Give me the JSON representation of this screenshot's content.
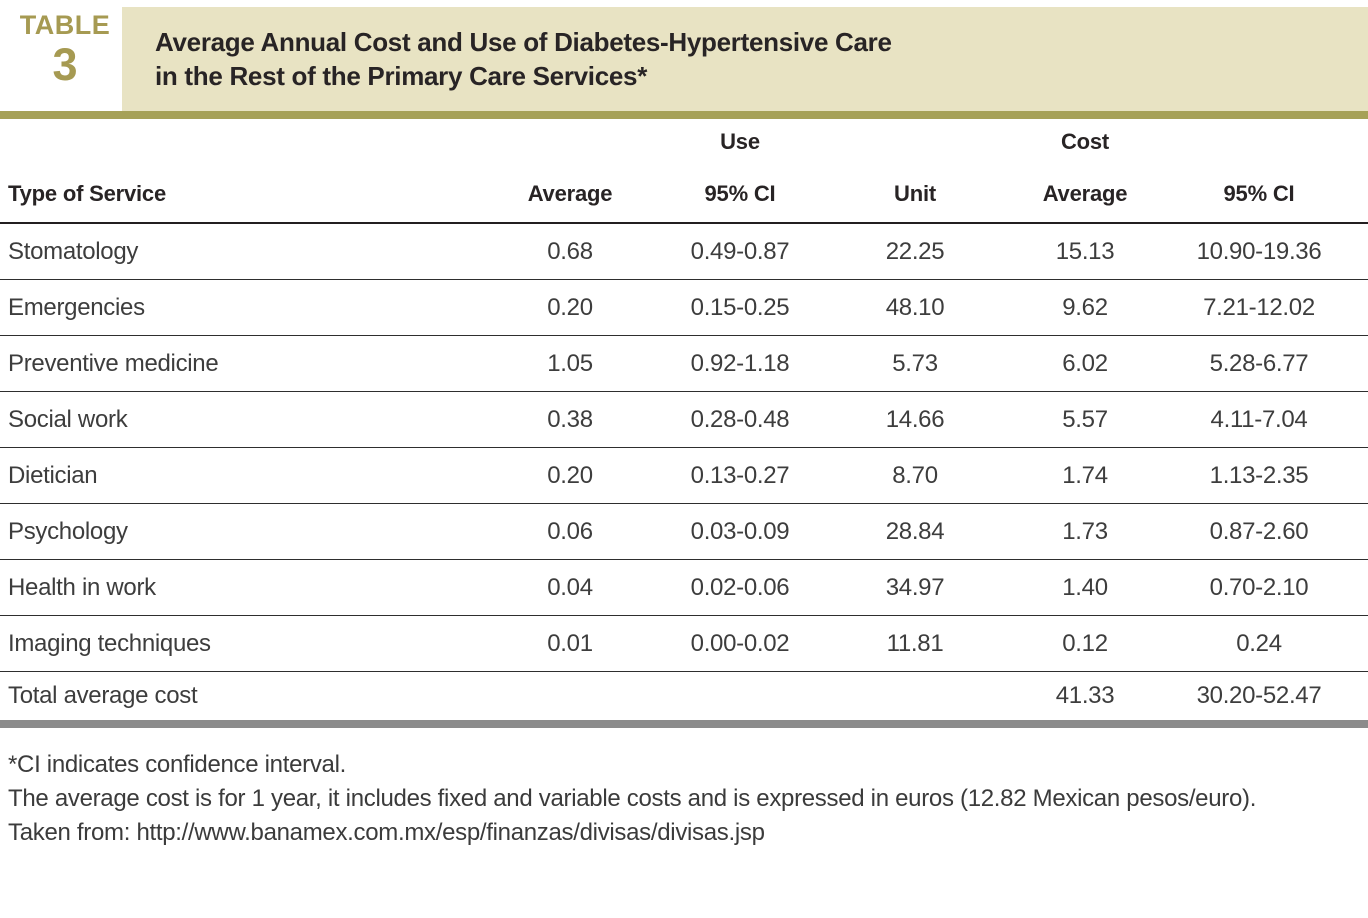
{
  "badge": {
    "label": "TABLE",
    "number": "3"
  },
  "title": {
    "line1": "Average Annual Cost and Use of Diabetes-Hypertensive Care",
    "line2": "in the Rest of the Primary Care Services*"
  },
  "colors": {
    "accent_olive": "#a6a158",
    "badge_olive": "#a69a52",
    "title_beige": "#e8e3c3",
    "bottom_bar_gray": "#8b8b8b",
    "header_text": "#282425",
    "body_text": "#3d3d3d"
  },
  "table": {
    "group_headers": {
      "use": "Use",
      "cost": "Cost"
    },
    "columns": {
      "service": "Type of Service",
      "use_average": "Average",
      "use_ci": "95% CI",
      "unit": "Unit",
      "cost_average": "Average",
      "cost_ci": "95% CI"
    },
    "rows": [
      {
        "service": "Stomatology",
        "use_average": "0.68",
        "use_ci": "0.49-0.87",
        "unit": "22.25",
        "cost_average": "15.13",
        "cost_ci": "10.90-19.36"
      },
      {
        "service": "Emergencies",
        "use_average": "0.20",
        "use_ci": "0.15-0.25",
        "unit": "48.10",
        "cost_average": "9.62",
        "cost_ci": "7.21-12.02"
      },
      {
        "service": "Preventive medicine",
        "use_average": "1.05",
        "use_ci": "0.92-1.18",
        "unit": "5.73",
        "cost_average": "6.02",
        "cost_ci": "5.28-6.77"
      },
      {
        "service": "Social work",
        "use_average": "0.38",
        "use_ci": "0.28-0.48",
        "unit": "14.66",
        "cost_average": "5.57",
        "cost_ci": "4.11-7.04"
      },
      {
        "service": "Dietician",
        "use_average": "0.20",
        "use_ci": "0.13-0.27",
        "unit": "8.70",
        "cost_average": "1.74",
        "cost_ci": "1.13-2.35"
      },
      {
        "service": "Psychology",
        "use_average": "0.06",
        "use_ci": "0.03-0.09",
        "unit": "28.84",
        "cost_average": "1.73",
        "cost_ci": "0.87-2.60"
      },
      {
        "service": "Health in work",
        "use_average": "0.04",
        "use_ci": "0.02-0.06",
        "unit": "34.97",
        "cost_average": "1.40",
        "cost_ci": "0.70-2.10"
      },
      {
        "service": "Imaging techniques",
        "use_average": "0.01",
        "use_ci": "0.00-0.02",
        "unit": "11.81",
        "cost_average": "0.12",
        "cost_ci": "0.24"
      },
      {
        "service": "Total average cost",
        "use_average": "",
        "use_ci": "",
        "unit": "",
        "cost_average": "41.33",
        "cost_ci": "30.20-52.47"
      }
    ]
  },
  "footnotes": {
    "line1": "*CI indicates confidence interval.",
    "line2": "The average cost is for 1 year, it includes fixed and variable costs and is expressed in euros (12.82 Mexican pesos/euro).",
    "line3": "Taken from: http://www.banamex.com.mx/esp/finanzas/divisas/divisas.jsp"
  }
}
